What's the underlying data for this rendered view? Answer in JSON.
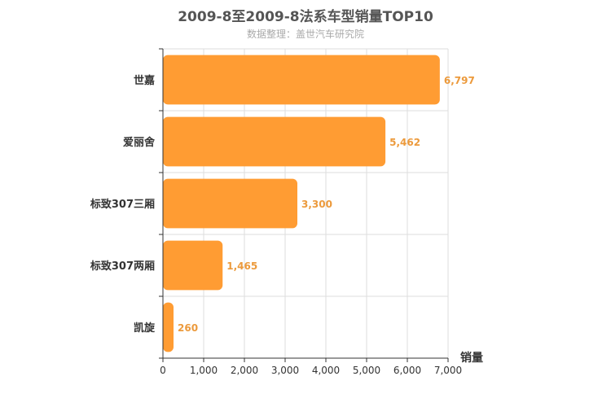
{
  "chart_data": {
    "type": "bar",
    "orientation": "horizontal",
    "title": "2009-8至2009-8法系车型销量TOP10",
    "subtitle": "数据整理：盖世汽车研究院",
    "xlabel": "销量",
    "ylabel": "",
    "categories": [
      "世嘉",
      "爱丽舍",
      "标致307三厢",
      "标致307两厢",
      "凯旋"
    ],
    "values": [
      6797,
      5462,
      3300,
      1465,
      260
    ],
    "value_labels": [
      "6,797",
      "5,462",
      "3,300",
      "1,465",
      "260"
    ],
    "xlim": [
      0,
      7000
    ],
    "xticks": [
      0,
      1000,
      2000,
      3000,
      4000,
      5000,
      6000,
      7000
    ],
    "xtick_labels": [
      "0",
      "1,000",
      "2,000",
      "3,000",
      "4,000",
      "5,000",
      "6,000",
      "7,000"
    ],
    "grid": true,
    "bar_color": "#ff9c33",
    "label_color": "#ec9a3c"
  }
}
